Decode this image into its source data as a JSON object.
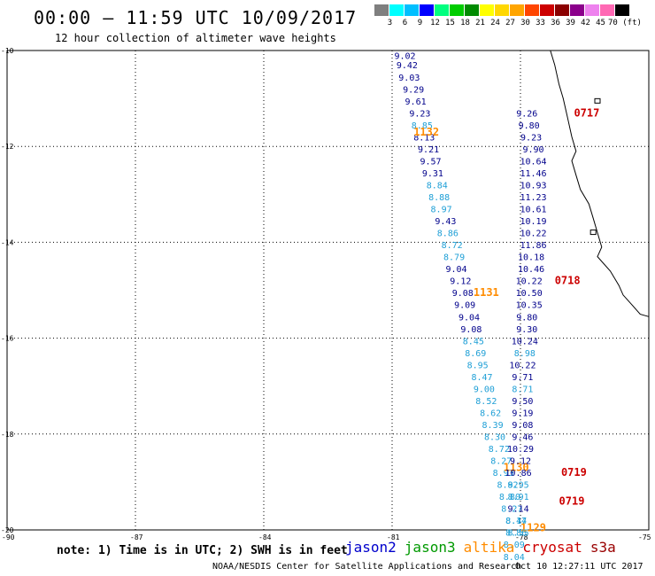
{
  "header": {
    "title": "00:00 – 11:59 UTC 10/09/2017",
    "subtitle": "12 hour collection of altimeter wave heights"
  },
  "colorbar": {
    "labels": [
      "3",
      "6",
      "9",
      "12",
      "15",
      "18",
      "21",
      "24",
      "27",
      "30",
      "33",
      "36",
      "39",
      "42",
      "45",
      "70 (ft)"
    ],
    "colors": [
      "#7f7f7f",
      "#00ffff",
      "#00bfff",
      "#0000ff",
      "#00ff7f",
      "#00cd00",
      "#008b00",
      "#ffff00",
      "#ffd700",
      "#ffa500",
      "#ff4500",
      "#cd0000",
      "#8b0000",
      "#8b008b",
      "#ee82ee",
      "#ff69b4",
      "#000000"
    ]
  },
  "axes": {
    "lat_labels": [
      "-10",
      "-12",
      "-14",
      "-16",
      "-18",
      "-20"
    ],
    "lon_labels": [
      "-90",
      "-87",
      "-84",
      "-81",
      "-78",
      "-75"
    ],
    "lat_range": [
      -20,
      -10
    ],
    "lon_range": [
      -90,
      -75
    ]
  },
  "map_data": {
    "coastline": [
      [
        -77.3,
        -10.0
      ],
      [
        -77.2,
        -10.3
      ],
      [
        -77.1,
        -10.7
      ],
      [
        -77.0,
        -11.0
      ],
      [
        -76.9,
        -11.4
      ],
      [
        -76.8,
        -11.8
      ],
      [
        -76.7,
        -12.1
      ],
      [
        -76.8,
        -12.3
      ],
      [
        -76.7,
        -12.6
      ],
      [
        -76.6,
        -12.9
      ],
      [
        -76.4,
        -13.2
      ],
      [
        -76.3,
        -13.5
      ],
      [
        -76.2,
        -13.8
      ],
      [
        -76.1,
        -14.1
      ],
      [
        -76.2,
        -14.3
      ],
      [
        -75.9,
        -14.6
      ],
      [
        -75.7,
        -14.9
      ],
      [
        -75.6,
        -15.1
      ],
      [
        -75.4,
        -15.3
      ],
      [
        -75.2,
        -15.5
      ],
      [
        -75.0,
        -15.55
      ]
    ],
    "islands": [
      [
        -76.2,
        -11.06
      ],
      [
        -76.3,
        -13.8
      ]
    ]
  },
  "passes": [
    {
      "time": "1132",
      "satellite": "jason3",
      "time_pos": [
        -80.2,
        -11.7
      ],
      "points": [
        {
          "lon": -80.7,
          "lat": -10.1,
          "v": "9.02",
          "c": "#00008b"
        },
        {
          "lon": -80.65,
          "lat": -10.3,
          "v": "9.42",
          "c": "#00008b"
        },
        {
          "lon": -80.6,
          "lat": -10.55,
          "v": "9.03",
          "c": "#00008b"
        },
        {
          "lon": -80.5,
          "lat": -10.8,
          "v": "9.29",
          "c": "#00008b"
        },
        {
          "lon": -80.45,
          "lat": -11.05,
          "v": "9.61",
          "c": "#00008b"
        },
        {
          "lon": -80.35,
          "lat": -11.3,
          "v": "9.23",
          "c": "#00008b"
        },
        {
          "lon": -80.3,
          "lat": -11.55,
          "v": "8.85",
          "c": "#1e9fd6"
        },
        {
          "lon": -80.25,
          "lat": -11.8,
          "v": "8.13",
          "c": "#00008b"
        },
        {
          "lon": -80.15,
          "lat": -12.05,
          "v": "9.21",
          "c": "#00008b"
        },
        {
          "lon": -80.1,
          "lat": -12.3,
          "v": "9.57",
          "c": "#00008b"
        },
        {
          "lon": -80.05,
          "lat": -12.55,
          "v": "9.31",
          "c": "#00008b"
        },
        {
          "lon": -79.95,
          "lat": -12.8,
          "v": "8.84",
          "c": "#1e9fd6"
        },
        {
          "lon": -79.9,
          "lat": -13.05,
          "v": "8.88",
          "c": "#1e9fd6"
        },
        {
          "lon": -79.85,
          "lat": -13.3,
          "v": "8.97",
          "c": "#1e9fd6"
        },
        {
          "lon": -79.75,
          "lat": -13.55,
          "v": "9.43",
          "c": "#00008b"
        },
        {
          "lon": -79.7,
          "lat": -13.8,
          "v": "8.86",
          "c": "#1e9fd6"
        },
        {
          "lon": -79.6,
          "lat": -14.05,
          "v": "8.72",
          "c": "#1e9fd6"
        },
        {
          "lon": -79.55,
          "lat": -14.3,
          "v": "8.79",
          "c": "#1e9fd6"
        },
        {
          "lon": -79.5,
          "lat": -14.55,
          "v": "9.04",
          "c": "#00008b"
        },
        {
          "lon": -79.4,
          "lat": -14.8,
          "v": "9.12",
          "c": "#00008b"
        },
        {
          "lon": -79.35,
          "lat": -15.05,
          "v": "9.08",
          "c": "#00008b"
        },
        {
          "lon": -79.3,
          "lat": -15.3,
          "v": "9.09",
          "c": "#00008b"
        },
        {
          "lon": -79.2,
          "lat": -15.55,
          "v": "9.04",
          "c": "#00008b"
        },
        {
          "lon": -79.15,
          "lat": -15.8,
          "v": "9.08",
          "c": "#00008b"
        }
      ]
    },
    {
      "time": "1131",
      "satellite": "jason3",
      "time_pos": [
        -78.8,
        -15.05
      ],
      "points": []
    },
    {
      "time": "1130",
      "satellite": "jason3",
      "time_pos": [
        -78.1,
        -18.7
      ],
      "points": [
        {
          "lon": -79.1,
          "lat": -16.05,
          "v": "8.45",
          "c": "#1e9fd6"
        },
        {
          "lon": -79.05,
          "lat": -16.3,
          "v": "8.69",
          "c": "#1e9fd6"
        },
        {
          "lon": -79.0,
          "lat": -16.55,
          "v": "8.95",
          "c": "#1e9fd6"
        },
        {
          "lon": -78.9,
          "lat": -16.8,
          "v": "8.47",
          "c": "#1e9fd6"
        },
        {
          "lon": -78.85,
          "lat": -17.05,
          "v": "9.00",
          "c": "#1e9fd6"
        },
        {
          "lon": -78.8,
          "lat": -17.3,
          "v": "8.52",
          "c": "#1e9fd6"
        },
        {
          "lon": -78.7,
          "lat": -17.55,
          "v": "8.62",
          "c": "#1e9fd6"
        },
        {
          "lon": -78.65,
          "lat": -17.8,
          "v": "8.39",
          "c": "#1e9fd6"
        },
        {
          "lon": -78.6,
          "lat": -18.05,
          "v": "8.30",
          "c": "#1e9fd6"
        },
        {
          "lon": -78.5,
          "lat": -18.3,
          "v": "8.72",
          "c": "#1e9fd6"
        },
        {
          "lon": -78.45,
          "lat": -18.55,
          "v": "8.27",
          "c": "#1e9fd6"
        },
        {
          "lon": -78.4,
          "lat": -18.8,
          "v": "8.93",
          "c": "#1e9fd6"
        },
        {
          "lon": -78.3,
          "lat": -19.05,
          "v": "8.92",
          "c": "#1e9fd6"
        },
        {
          "lon": -78.25,
          "lat": -19.3,
          "v": "8.80",
          "c": "#1e9fd6"
        },
        {
          "lon": -78.2,
          "lat": -19.55,
          "v": "8.27",
          "c": "#1e9fd6"
        },
        {
          "lon": -78.1,
          "lat": -19.8,
          "v": "8.44",
          "c": "#1e9fd6"
        },
        {
          "lon": -78.05,
          "lat": -20.05,
          "v": "8.55",
          "c": "#1e9fd6"
        }
      ]
    },
    {
      "time": "1129",
      "satellite": "altika",
      "time_pos": [
        -77.7,
        -19.95
      ],
      "points": []
    },
    {
      "time": "0717",
      "satellite": "cryosat",
      "time_pos": [
        -76.45,
        -11.3
      ],
      "points": [
        {
          "lon": -77.85,
          "lat": -11.3,
          "v": "9.26",
          "c": "#00008b"
        },
        {
          "lon": -77.8,
          "lat": -11.55,
          "v": "9.80",
          "c": "#00008b"
        },
        {
          "lon": -77.75,
          "lat": -11.8,
          "v": "9.23",
          "c": "#00008b"
        },
        {
          "lon": -77.7,
          "lat": -12.05,
          "v": "9.90",
          "c": "#00008b"
        },
        {
          "lon": -77.7,
          "lat": -12.3,
          "v": "10.64",
          "c": "#00008b"
        },
        {
          "lon": -77.7,
          "lat": -12.55,
          "v": "11.46",
          "c": "#00008b"
        },
        {
          "lon": -77.7,
          "lat": -12.8,
          "v": "10.93",
          "c": "#00008b"
        },
        {
          "lon": -77.7,
          "lat": -13.05,
          "v": "11.23",
          "c": "#00008b"
        },
        {
          "lon": -77.7,
          "lat": -13.3,
          "v": "10.61",
          "c": "#00008b"
        },
        {
          "lon": -77.7,
          "lat": -13.55,
          "v": "10.19",
          "c": "#00008b"
        },
        {
          "lon": -77.7,
          "lat": -13.8,
          "v": "10.22",
          "c": "#00008b"
        },
        {
          "lon": -77.7,
          "lat": -14.05,
          "v": "11.86",
          "c": "#00008b"
        },
        {
          "lon": -77.75,
          "lat": -14.3,
          "v": "10.18",
          "c": "#00008b"
        },
        {
          "lon": -77.75,
          "lat": -14.55,
          "v": "10.46",
          "c": "#00008b"
        }
      ]
    },
    {
      "time": "0718",
      "satellite": "cryosat",
      "time_pos": [
        -76.9,
        -14.8
      ],
      "points": [
        {
          "lon": -77.8,
          "lat": -14.8,
          "v": "10.22",
          "c": "#00008b"
        },
        {
          "lon": -77.8,
          "lat": -15.05,
          "v": "10.50",
          "c": "#00008b"
        },
        {
          "lon": -77.8,
          "lat": -15.3,
          "v": "10.35",
          "c": "#00008b"
        },
        {
          "lon": -77.85,
          "lat": -15.55,
          "v": "9.80",
          "c": "#00008b"
        },
        {
          "lon": -77.85,
          "lat": -15.8,
          "v": "9.30",
          "c": "#00008b"
        },
        {
          "lon": -77.9,
          "lat": -16.05,
          "v": "10.24",
          "c": "#00008b"
        },
        {
          "lon": -77.9,
          "lat": -16.3,
          "v": "8.98",
          "c": "#1e9fd6"
        },
        {
          "lon": -77.95,
          "lat": -16.55,
          "v": "10.22",
          "c": "#00008b"
        },
        {
          "lon": -77.95,
          "lat": -16.8,
          "v": "9.71",
          "c": "#00008b"
        },
        {
          "lon": -77.95,
          "lat": -17.05,
          "v": "8.71",
          "c": "#1e9fd6"
        },
        {
          "lon": -77.95,
          "lat": -17.3,
          "v": "9.50",
          "c": "#00008b"
        },
        {
          "lon": -77.95,
          "lat": -17.55,
          "v": "9.19",
          "c": "#00008b"
        },
        {
          "lon": -77.95,
          "lat": -17.8,
          "v": "9.08",
          "c": "#00008b"
        },
        {
          "lon": -77.95,
          "lat": -18.05,
          "v": "9.46",
          "c": "#00008b"
        },
        {
          "lon": -78.0,
          "lat": -18.3,
          "v": "10.29",
          "c": "#00008b"
        },
        {
          "lon": -78.0,
          "lat": -18.55,
          "v": "9.12",
          "c": "#00008b"
        }
      ]
    },
    {
      "time": "0719",
      "satellite": "cryosat",
      "time_pos": [
        -76.75,
        -18.8
      ],
      "points": [
        {
          "lon": -78.05,
          "lat": -18.8,
          "v": "10.86",
          "c": "#00008b"
        },
        {
          "lon": -78.05,
          "lat": -19.05,
          "v": "8.95",
          "c": "#1e9fd6"
        },
        {
          "lon": -78.05,
          "lat": -19.3,
          "v": "8.91",
          "c": "#1e9fd6"
        },
        {
          "lon": -78.05,
          "lat": -19.55,
          "v": "9.14",
          "c": "#00008b"
        },
        {
          "lon": -78.1,
          "lat": -19.8,
          "v": "8.17",
          "c": "#1e9fd6"
        },
        {
          "lon": -78.1,
          "lat": -20.05,
          "v": "8.86",
          "c": "#1e9fd6"
        },
        {
          "lon": -78.15,
          "lat": -20.3,
          "v": "8.09",
          "c": "#1e9fd6"
        },
        {
          "lon": -78.15,
          "lat": -20.55,
          "v": "8.04",
          "c": "#1e9fd6"
        }
      ]
    },
    {
      "time": "0719",
      "satellite": "cryosat",
      "time_pos": [
        -76.8,
        -19.4
      ],
      "points": []
    }
  ],
  "time_colors": {
    "jason3": "#ff8c00",
    "altika": "#ff8c00",
    "cryosat": "#cc0000"
  },
  "note": "note: 1) Time is in UTC; 2) SWH is in feet",
  "legend": [
    {
      "label": "jason2",
      "color": "#0000cc"
    },
    {
      "label": "jason3",
      "color": "#009900"
    },
    {
      "label": "altika",
      "color": "#ff8c00"
    },
    {
      "label": "cryosat",
      "color": "#cc0000"
    },
    {
      "label": "s3a",
      "color": "#990000"
    }
  ],
  "footer": {
    "credit": "NOAA/NESDIS Center for Satellite Applications and Research",
    "timestamp": "Oct 10 12:27:11 UTC 2017"
  }
}
